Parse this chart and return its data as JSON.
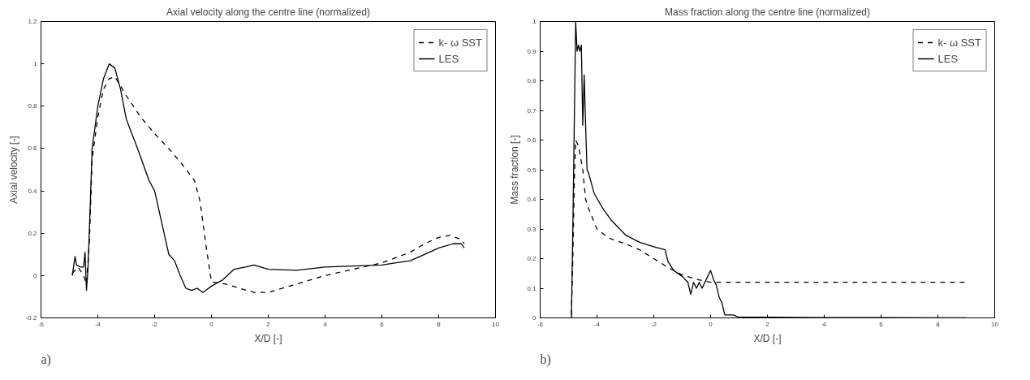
{
  "chart_data": [
    {
      "type": "line",
      "title": "Axial velocity along the centre line (normalized)",
      "xlabel": "X/D [-]",
      "ylabel": "Axial velocity [-]",
      "annotations": [
        "a)"
      ],
      "xlim": [
        -6,
        10
      ],
      "ylim": [
        -0.2,
        1.2
      ],
      "xticks": [
        -6,
        -4,
        -2,
        0,
        2,
        4,
        6,
        8,
        10
      ],
      "yticks": [
        -0.2,
        0,
        0.2,
        0.4,
        0.6,
        0.8,
        1,
        1.2
      ],
      "grid": false,
      "legend": "top right",
      "series": [
        {
          "name": "k- ω SST",
          "color": "#000000",
          "line_style": "dashed",
          "x": [
            -4.9,
            -4.7,
            -4.5,
            -4.4,
            -4.3,
            -4.2,
            -4.0,
            -3.8,
            -3.6,
            -3.4,
            -3.0,
            -2.5,
            -2.0,
            -1.5,
            -1.0,
            -0.6,
            -0.4,
            -0.2,
            0,
            0.5,
            1.0,
            1.5,
            2.0,
            3.0,
            4.0,
            5.0,
            6.0,
            7.0,
            7.5,
            8.0,
            8.4,
            8.8,
            8.9
          ],
          "values": [
            0.01,
            0.04,
            0.0,
            -0.04,
            0.15,
            0.55,
            0.75,
            0.88,
            0.93,
            0.94,
            0.85,
            0.75,
            0.67,
            0.6,
            0.52,
            0.45,
            0.35,
            0.15,
            -0.03,
            -0.04,
            -0.06,
            -0.08,
            -0.08,
            -0.04,
            0.0,
            0.03,
            0.06,
            0.11,
            0.15,
            0.18,
            0.19,
            0.17,
            0.15
          ]
        },
        {
          "name": "LES",
          "color": "#000000",
          "line_style": "solid",
          "x": [
            -4.9,
            -4.8,
            -4.75,
            -4.6,
            -4.5,
            -4.45,
            -4.4,
            -4.35,
            -4.3,
            -4.2,
            -4.0,
            -3.8,
            -3.6,
            -3.4,
            -3.2,
            -3.0,
            -2.6,
            -2.2,
            -2.0,
            -1.8,
            -1.5,
            -1.3,
            -1.1,
            -0.9,
            -0.7,
            -0.5,
            -0.3,
            0,
            0.4,
            0.8,
            1.2,
            1.5,
            2.0,
            3,
            4,
            5,
            6,
            6.5,
            7,
            7.5,
            8,
            8.5,
            8.8,
            8.9
          ],
          "values": [
            0,
            0.09,
            0.05,
            0.04,
            0.04,
            0.11,
            -0.07,
            0.02,
            0.2,
            0.6,
            0.8,
            0.93,
            1.0,
            0.98,
            0.88,
            0.74,
            0.6,
            0.45,
            0.4,
            0.28,
            0.1,
            0.07,
            0.0,
            -0.06,
            -0.07,
            -0.06,
            -0.08,
            -0.05,
            -0.02,
            0.03,
            0.04,
            0.05,
            0.03,
            0.025,
            0.04,
            0.045,
            0.05,
            0.06,
            0.07,
            0.1,
            0.13,
            0.15,
            0.15,
            0.13
          ]
        }
      ]
    },
    {
      "type": "line",
      "title": "Mass fraction along the centre line (normalized)",
      "xlabel": "X/D [-]",
      "ylabel": "Mass fraction [-]",
      "annotations": [
        "b)"
      ],
      "xlim": [
        -6,
        10
      ],
      "ylim": [
        0,
        1
      ],
      "xticks": [
        -6,
        -4,
        -2,
        0,
        2,
        4,
        6,
        8,
        10
      ],
      "yticks": [
        0,
        0.1,
        0.2,
        0.3,
        0.4,
        0.5,
        0.6,
        0.7,
        0.8,
        0.9,
        1
      ],
      "grid": false,
      "legend": "top right",
      "series": [
        {
          "name": "k- ω SST",
          "color": "#000000",
          "line_style": "dashed",
          "x": [
            -4.9,
            -4.85,
            -4.8,
            -4.75,
            -4.65,
            -4.5,
            -4.4,
            -4.3,
            -4.0,
            -3.6,
            -3,
            -2.5,
            -2,
            -1.5,
            -1,
            -0.5,
            0,
            0.5,
            2,
            5,
            8,
            9
          ],
          "values": [
            0.01,
            0.2,
            0.45,
            0.6,
            0.58,
            0.5,
            0.4,
            0.37,
            0.3,
            0.27,
            0.25,
            0.23,
            0.2,
            0.17,
            0.145,
            0.13,
            0.12,
            0.12,
            0.12,
            0.12,
            0.12,
            0.12
          ]
        },
        {
          "name": "LES",
          "color": "#000000",
          "line_style": "solid",
          "x": [
            -4.9,
            -4.85,
            -4.8,
            -4.75,
            -4.7,
            -4.65,
            -4.6,
            -4.55,
            -4.5,
            -4.45,
            -4.4,
            -4.35,
            -4.3,
            -4.1,
            -3.8,
            -3.5,
            -3,
            -2.5,
            -2,
            -1.6,
            -1.5,
            -1.3,
            -1.0,
            -0.8,
            -0.7,
            -0.6,
            -0.5,
            -0.4,
            -0.3,
            -0.1,
            0,
            0.1,
            0.2,
            0.3,
            0.4,
            0.5,
            0.8,
            1.0,
            2,
            4,
            6,
            8,
            9
          ],
          "values": [
            0,
            0.3,
            0.65,
            1.0,
            0.9,
            0.92,
            0.9,
            0.92,
            0.65,
            0.82,
            0.65,
            0.5,
            0.49,
            0.42,
            0.37,
            0.33,
            0.28,
            0.255,
            0.24,
            0.23,
            0.19,
            0.16,
            0.14,
            0.12,
            0.08,
            0.12,
            0.1,
            0.12,
            0.1,
            0.14,
            0.16,
            0.13,
            0.11,
            0.07,
            0.05,
            0.01,
            0.01,
            0.002,
            0.002,
            0.001,
            0.001,
            0,
            0
          ]
        }
      ]
    }
  ]
}
